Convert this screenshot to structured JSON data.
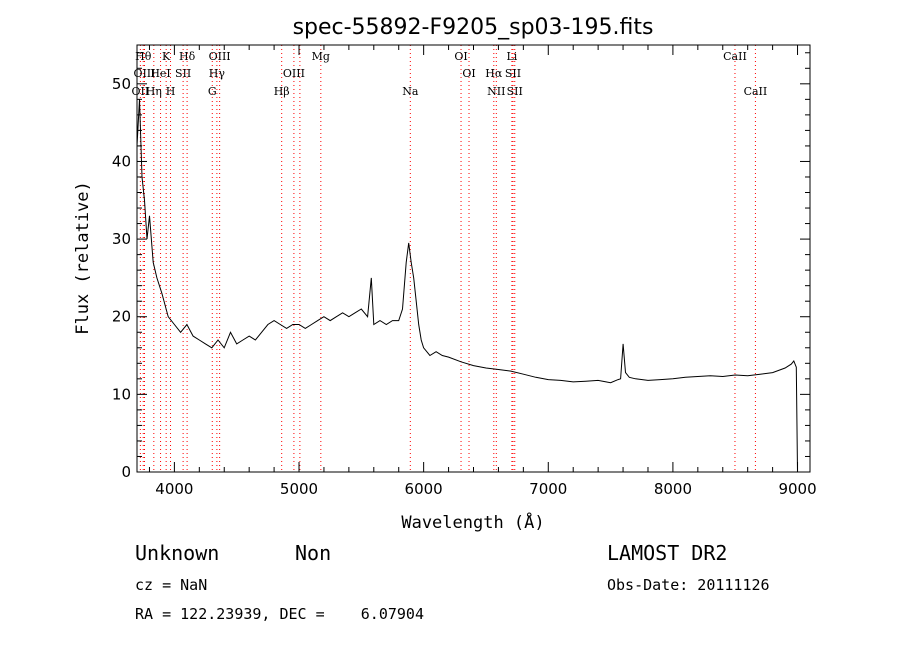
{
  "chart_data": {
    "type": "line",
    "title": "spec-55892-F9205_sp03-195.fits",
    "xlabel": "Wavelength (Å)",
    "ylabel": "Flux (relative)",
    "xlim": [
      3700,
      9100
    ],
    "ylim": [
      0,
      55
    ],
    "xticks": [
      4000,
      5000,
      6000,
      7000,
      8000,
      9000
    ],
    "yticks": [
      0,
      10,
      20,
      30,
      40,
      50
    ],
    "series": [
      {
        "name": "spectrum",
        "x": [
          3700,
          3720,
          3740,
          3760,
          3780,
          3800,
          3830,
          3860,
          3900,
          3950,
          4000,
          4050,
          4100,
          4150,
          4200,
          4250,
          4300,
          4350,
          4400,
          4450,
          4500,
          4550,
          4600,
          4650,
          4700,
          4750,
          4800,
          4850,
          4900,
          4950,
          5000,
          5050,
          5100,
          5150,
          5200,
          5250,
          5300,
          5350,
          5400,
          5450,
          5500,
          5550,
          5580,
          5600,
          5650,
          5700,
          5750,
          5800,
          5830,
          5860,
          5880,
          5900,
          5920,
          5940,
          5960,
          5980,
          6000,
          6050,
          6100,
          6150,
          6200,
          6300,
          6400,
          6500,
          6600,
          6700,
          6800,
          6900,
          7000,
          7100,
          7200,
          7300,
          7400,
          7500,
          7560,
          7580,
          7600,
          7620,
          7650,
          7700,
          7800,
          7900,
          8000,
          8100,
          8200,
          8300,
          8400,
          8500,
          8600,
          8700,
          8800,
          8900,
          8950,
          8970,
          8990,
          9000
        ],
        "y": [
          42,
          48,
          38,
          35,
          30,
          33,
          27,
          25,
          23,
          20,
          19,
          18,
          19,
          17.5,
          17,
          16.5,
          16,
          17,
          16,
          18,
          16.5,
          17,
          17.5,
          17,
          18,
          19,
          19.5,
          19,
          18.5,
          19,
          19,
          18.5,
          19,
          19.5,
          20,
          19.5,
          20,
          20.5,
          20,
          20.5,
          21,
          20,
          25,
          19,
          19.5,
          19,
          19.5,
          19.5,
          21,
          27,
          29.5,
          27,
          25,
          22,
          19,
          17,
          16,
          15,
          15.5,
          15,
          14.8,
          14.2,
          13.7,
          13.4,
          13.2,
          13.0,
          12.6,
          12.2,
          11.9,
          11.8,
          11.6,
          11.7,
          11.8,
          11.5,
          11.9,
          12.0,
          16.5,
          12.8,
          12.2,
          12.0,
          11.8,
          11.9,
          12.0,
          12.2,
          12.3,
          12.4,
          12.3,
          12.5,
          12.4,
          12.6,
          12.8,
          13.4,
          13.9,
          14.3,
          13.5,
          0.0
        ]
      }
    ],
    "spectral_lines": [
      {
        "label": "OII",
        "wavelength": 3727,
        "row": 2
      },
      {
        "label": "Hθ",
        "wavelength": 3750,
        "row": 0
      },
      {
        "label": "OIII",
        "wavelength": 3760,
        "row": 1
      },
      {
        "label": "Hη",
        "wavelength": 3835,
        "row": 2
      },
      {
        "label": "K",
        "wavelength": 3934,
        "row": 0
      },
      {
        "label": "HeI",
        "wavelength": 3889,
        "row": 1
      },
      {
        "label": "SII",
        "wavelength": 4070,
        "row": 1
      },
      {
        "label": "H",
        "wavelength": 3969,
        "row": 2
      },
      {
        "label": "Hδ",
        "wavelength": 4102,
        "row": 0
      },
      {
        "label": "OIII",
        "wavelength": 4363,
        "row": 0
      },
      {
        "label": "Hγ",
        "wavelength": 4341,
        "row": 1
      },
      {
        "label": "G",
        "wavelength": 4304,
        "row": 2
      },
      {
        "label": "Hβ",
        "wavelength": 4861,
        "row": 2
      },
      {
        "label": "OIII",
        "wavelength": 4959,
        "row": 1
      },
      {
        "label": "OIII",
        "wavelength": 5007,
        "row": -1
      },
      {
        "label": "Mg",
        "wavelength": 5175,
        "row": 0
      },
      {
        "label": "Na",
        "wavelength": 5893,
        "row": 2
      },
      {
        "label": "OI",
        "wavelength": 6300,
        "row": 0
      },
      {
        "label": "OI",
        "wavelength": 6364,
        "row": 1
      },
      {
        "label": "Li",
        "wavelength": 6708,
        "row": 0
      },
      {
        "label": "Hα",
        "wavelength": 6563,
        "row": 1
      },
      {
        "label": "SII",
        "wavelength": 6717,
        "row": 1
      },
      {
        "label": "NII",
        "wavelength": 6583,
        "row": 2
      },
      {
        "label": "SII",
        "wavelength": 6731,
        "row": 2
      },
      {
        "label": "CaII",
        "wavelength": 8498,
        "row": 0
      },
      {
        "label": "CaII",
        "wavelength": 8662,
        "row": 2
      }
    ]
  },
  "info": {
    "class": "Unknown",
    "subclass": "Non",
    "survey": "LAMOST DR2",
    "cz": "cz = NaN",
    "obs_date": "Obs-Date: 20111126",
    "radec": "RA = 122.23939, DEC =    6.07904"
  },
  "colors": {
    "line": "#000000",
    "marker": "#ff0000"
  }
}
